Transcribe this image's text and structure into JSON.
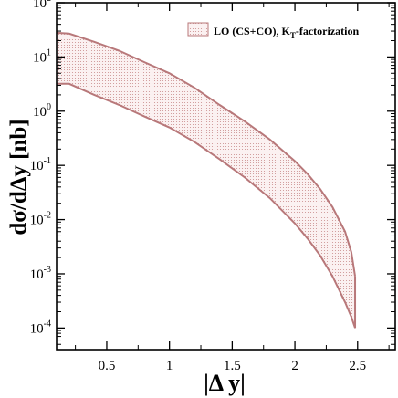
{
  "chart_data": {
    "type": "area",
    "title": "",
    "xlabel": "|Δ y|",
    "ylabel": "dσ/dΔy [nb]",
    "xlim": [
      0.1,
      2.8
    ],
    "ylim": [
      4e-05,
      100
    ],
    "yscale": "log",
    "grid": false,
    "legend_position": "top-right",
    "x_ticks": [
      {
        "value": 0.5,
        "label": "0.5"
      },
      {
        "value": 1,
        "label": "1"
      },
      {
        "value": 1.5,
        "label": "1.5"
      },
      {
        "value": 2,
        "label": "2"
      },
      {
        "value": 2.5,
        "label": "2.5"
      }
    ],
    "y_ticks": [
      {
        "value": 0.0001,
        "base": "10",
        "exp": "-4"
      },
      {
        "value": 0.001,
        "base": "10",
        "exp": "-3"
      },
      {
        "value": 0.01,
        "base": "10",
        "exp": "-2"
      },
      {
        "value": 0.1,
        "base": "10",
        "exp": "-1"
      },
      {
        "value": 1,
        "base": "10",
        "exp": "0"
      },
      {
        "value": 10,
        "base": "10",
        "exp": "1"
      },
      {
        "value": 100,
        "base": "10",
        "exp": "2"
      }
    ],
    "series": [
      {
        "name": "LO (CS+CO), K",
        "name_sub": "T",
        "name_suffix": "-factorization",
        "color": "#b8787a",
        "x": [
          0.1,
          0.2,
          0.4,
          0.6,
          0.8,
          1.0,
          1.2,
          1.4,
          1.6,
          1.8,
          2.0,
          2.1,
          2.2,
          2.3,
          2.4,
          2.45,
          2.48
        ],
        "upper": [
          28,
          27,
          19,
          13,
          8,
          5,
          2.7,
          1.3,
          0.65,
          0.3,
          0.12,
          0.07,
          0.037,
          0.017,
          0.006,
          0.0025,
          0.0009
        ],
        "lower": [
          3.2,
          3.2,
          2.0,
          1.3,
          0.8,
          0.5,
          0.27,
          0.13,
          0.06,
          0.025,
          0.0085,
          0.0045,
          0.0022,
          0.0009,
          0.0003,
          0.00016,
          0.0001
        ]
      }
    ]
  }
}
